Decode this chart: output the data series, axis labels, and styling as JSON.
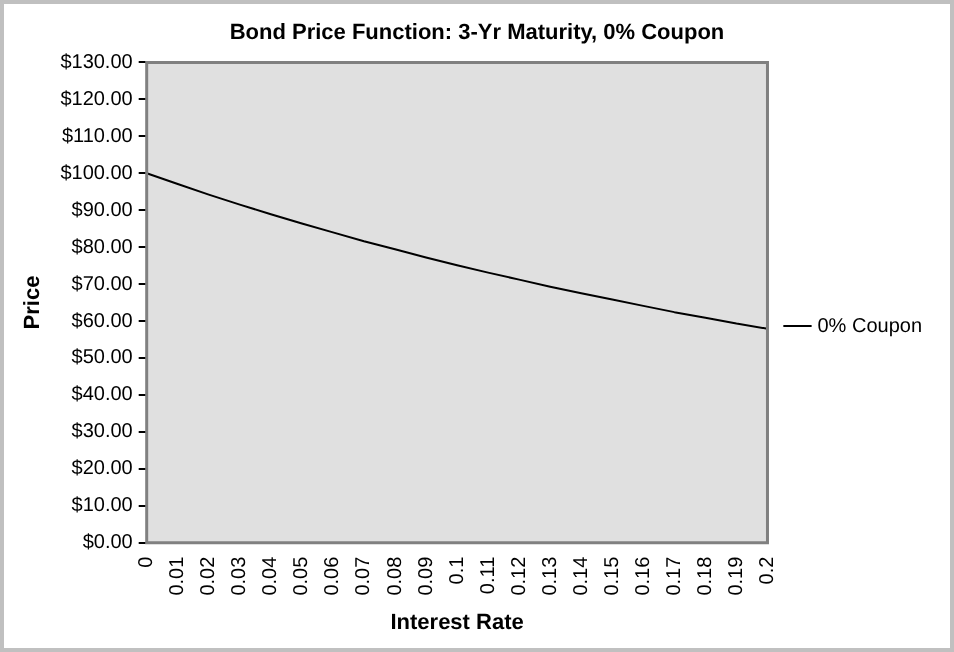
{
  "chart_data": {
    "type": "line",
    "title": "Bond Price Function: 3-Yr Maturity, 0% Coupon",
    "xlabel": "Interest Rate",
    "ylabel": "Price",
    "x": [
      0,
      0.01,
      0.02,
      0.03,
      0.04,
      0.05,
      0.06,
      0.07,
      0.08,
      0.09,
      0.1,
      0.11,
      0.12,
      0.13,
      0.14,
      0.15,
      0.16,
      0.17,
      0.18,
      0.19,
      0.2
    ],
    "series": [
      {
        "name": "0% Coupon",
        "color": "#000000",
        "values": [
          100,
          97.1,
          94.2,
          91.5,
          88.9,
          86.4,
          84,
          81.6,
          79.4,
          77.2,
          75.1,
          73.1,
          71.2,
          69.3,
          67.5,
          65.8,
          64.1,
          62.4,
          60.9,
          59.3,
          57.9
        ]
      }
    ],
    "xlim": [
      0,
      0.2
    ],
    "xticks": [
      0,
      0.01,
      0.02,
      0.03,
      0.04,
      0.05,
      0.06,
      0.07,
      0.08,
      0.09,
      0.1,
      0.11,
      0.12,
      0.13,
      0.14,
      0.15,
      0.16,
      0.17,
      0.18,
      0.19,
      0.2
    ],
    "ylim": [
      0,
      130
    ],
    "yticks": [
      {
        "value": 0,
        "label": "$0.00"
      },
      {
        "value": 10,
        "label": "$10.00"
      },
      {
        "value": 20,
        "label": "$20.00"
      },
      {
        "value": 30,
        "label": "$30.00"
      },
      {
        "value": 40,
        "label": "$40.00"
      },
      {
        "value": 50,
        "label": "$50.00"
      },
      {
        "value": 60,
        "label": "$60.00"
      },
      {
        "value": 70,
        "label": "$70.00"
      },
      {
        "value": 80,
        "label": "$80.00"
      },
      {
        "value": 90,
        "label": "$90.00"
      },
      {
        "value": 100,
        "label": "$100.00"
      },
      {
        "value": 110,
        "label": "$110.00"
      },
      {
        "value": 120,
        "label": "$120.00"
      },
      {
        "value": 130,
        "label": "$130.00"
      }
    ],
    "grid": false,
    "legend": "right",
    "marker": "none",
    "line_style": "solid"
  }
}
